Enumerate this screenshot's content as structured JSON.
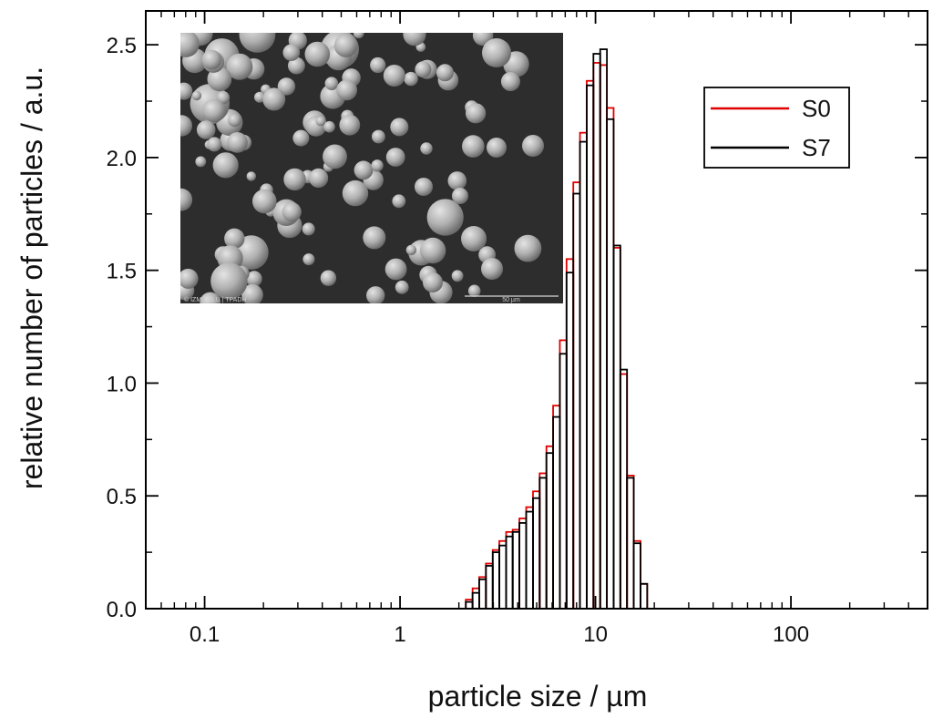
{
  "chart_data": {
    "type": "bar",
    "subtype": "log-x histogram, two overlaid series",
    "title": "",
    "xlabel": "particle size / µm",
    "ylabel": "relative number of particles / a.u.",
    "xscale": "log",
    "xlim": [
      0.05,
      500
    ],
    "ylim": [
      0,
      2.65
    ],
    "x_ticks": [
      {
        "value": 0.1,
        "label": "0.1"
      },
      {
        "value": 1,
        "label": "1"
      },
      {
        "value": 10,
        "label": "10"
      },
      {
        "value": 100,
        "label": "100"
      }
    ],
    "y_ticks": [
      {
        "value": 0.0,
        "label": "0.0"
      },
      {
        "value": 0.5,
        "label": "0.5"
      },
      {
        "value": 1.0,
        "label": "1.0"
      },
      {
        "value": 1.5,
        "label": "1.5"
      },
      {
        "value": 2.0,
        "label": "2.0"
      },
      {
        "value": 2.5,
        "label": "2.5"
      }
    ],
    "bin_edges": [
      2.0,
      2.17,
      2.35,
      2.54,
      2.75,
      2.98,
      3.22,
      3.49,
      3.77,
      4.08,
      4.42,
      4.79,
      5.18,
      5.61,
      6.07,
      6.57,
      7.11,
      7.7,
      8.33,
      9.02,
      9.76,
      10.57,
      11.44,
      12.38,
      13.4,
      14.5,
      15.7,
      16.99,
      18.39,
      19.91,
      21.55,
      23.32
    ],
    "series": [
      {
        "name": "S0",
        "color": "#e00000",
        "values": [
          0.0,
          0.04,
          0.09,
          0.14,
          0.2,
          0.26,
          0.3,
          0.34,
          0.35,
          0.4,
          0.45,
          0.52,
          0.6,
          0.72,
          0.9,
          1.19,
          1.55,
          1.89,
          2.11,
          2.34,
          2.42,
          2.41,
          2.22,
          1.6,
          1.04,
          0.59,
          0.3,
          0.11,
          0.0,
          0.0,
          0.0
        ]
      },
      {
        "name": "S7",
        "color": "#000000",
        "values": [
          0.0,
          0.03,
          0.07,
          0.13,
          0.19,
          0.25,
          0.28,
          0.32,
          0.34,
          0.38,
          0.43,
          0.49,
          0.58,
          0.69,
          0.85,
          1.13,
          1.49,
          1.84,
          2.07,
          2.32,
          2.46,
          2.48,
          2.17,
          1.61,
          1.06,
          0.58,
          0.29,
          0.11,
          0.0,
          0.0,
          0.0
        ]
      }
    ],
    "legend": {
      "position": "top-right",
      "entries": [
        "S0",
        "S7"
      ]
    },
    "grid": false,
    "inset": {
      "description": "SEM micrograph of spherical powder particles",
      "scale_bar_label": "50 µm",
      "watermark": "© IZM | MLU | TPADH"
    }
  }
}
